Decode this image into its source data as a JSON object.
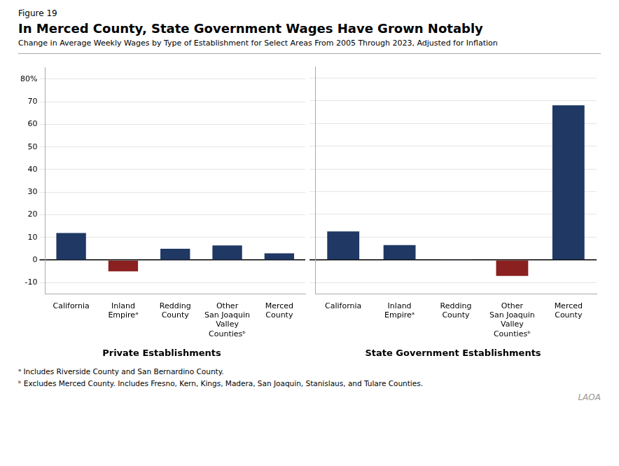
{
  "figure_label": "Figure 19",
  "title": "In Merced County, State Government Wages Have Grown Notably",
  "subtitle": "Change in Average Weekly Wages by Type of Establishment for Select Areas From 2005 Through 2023, Adjusted for Inflation",
  "annotations": [
    "ᵃ Includes Riverside County and San Bernardino County.",
    "ᵇ Excludes Merced County. Includes Fresno, Kern, Kings, Madera, San Joaquin, Stanislaus, and Tulare Counties."
  ],
  "watermark": "LAOA",
  "chart_data": [
    {
      "type": "bar",
      "title": "Private Establishments",
      "categories": [
        "California",
        "Inland\nEmpireᵃ",
        "Redding\nCounty",
        "Other\nSan Joaquin\nValley\nCountiesᵇ",
        "Merced\nCounty"
      ],
      "values": [
        12,
        -5,
        5,
        6.5,
        3
      ],
      "colors": [
        "#1F3864",
        "#8B2020",
        "#1F3864",
        "#1F3864",
        "#1F3864"
      ],
      "ylim": [
        -15,
        85
      ],
      "yticks": [
        -10,
        0,
        10,
        20,
        30,
        40,
        50,
        60,
        70,
        {
          "value": 80,
          "label": "80%"
        }
      ],
      "grid": true
    },
    {
      "type": "bar",
      "title": "State Government Establishments",
      "categories": [
        "California",
        "Inland\nEmpireᵃ",
        "Redding\nCounty",
        "Other\nSan Joaquin\nValley\nCountiesᵇ",
        "Merced\nCounty"
      ],
      "values": [
        12.5,
        6.5,
        0.3,
        -7,
        68
      ],
      "colors": [
        "#1F3864",
        "#1F3864",
        "#1F3864",
        "#8B2020",
        "#1F3864"
      ],
      "ylim": [
        -15,
        85
      ],
      "yticks": [
        -10,
        0,
        10,
        20,
        30,
        40,
        50,
        60,
        70,
        {
          "value": 80,
          "label": "80%"
        }
      ],
      "grid": true,
      "tick_labels": "x"
    }
  ]
}
